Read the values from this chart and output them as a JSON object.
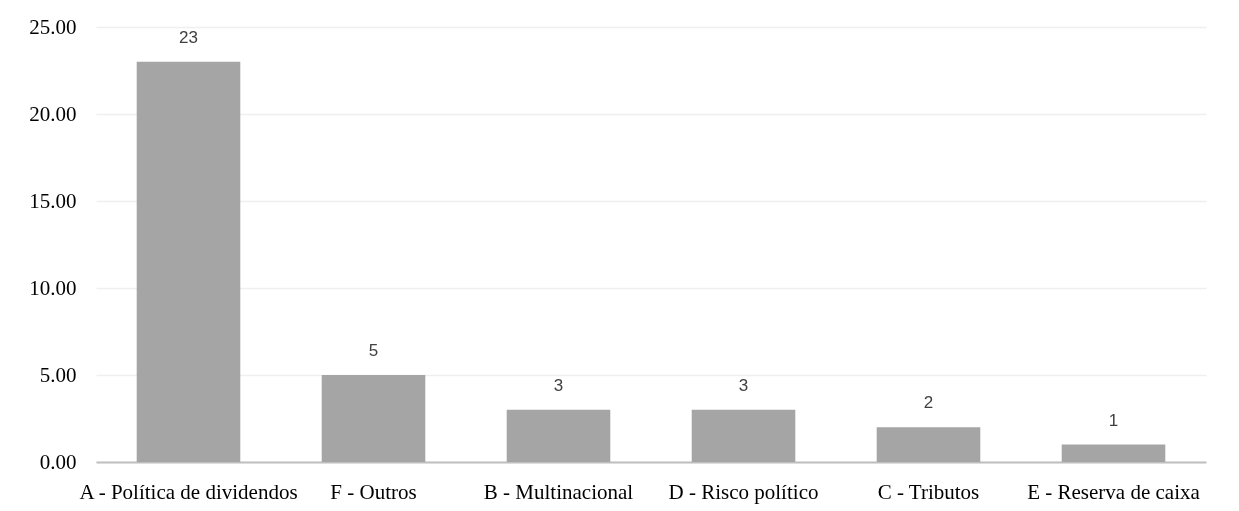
{
  "chart_data": {
    "type": "bar",
    "categories": [
      "A - Política de dividendos",
      "F - Outros",
      "B - Multinacional",
      "D - Risco político",
      "C - Tributos",
      "E - Reserva de caixa"
    ],
    "values": [
      23,
      5,
      3,
      3,
      2,
      1
    ],
    "color": "#a5a5a5",
    "ylim": [
      0,
      25
    ],
    "yticks": [
      {
        "value": 0,
        "label": "0.00"
      },
      {
        "value": 5,
        "label": "5.00"
      },
      {
        "value": 10,
        "label": "10.00"
      },
      {
        "value": 15,
        "label": "15.00"
      },
      {
        "value": 20,
        "label": "20.00"
      },
      {
        "value": 25,
        "label": "25.00"
      }
    ],
    "grid": "y",
    "data_labels": true
  }
}
